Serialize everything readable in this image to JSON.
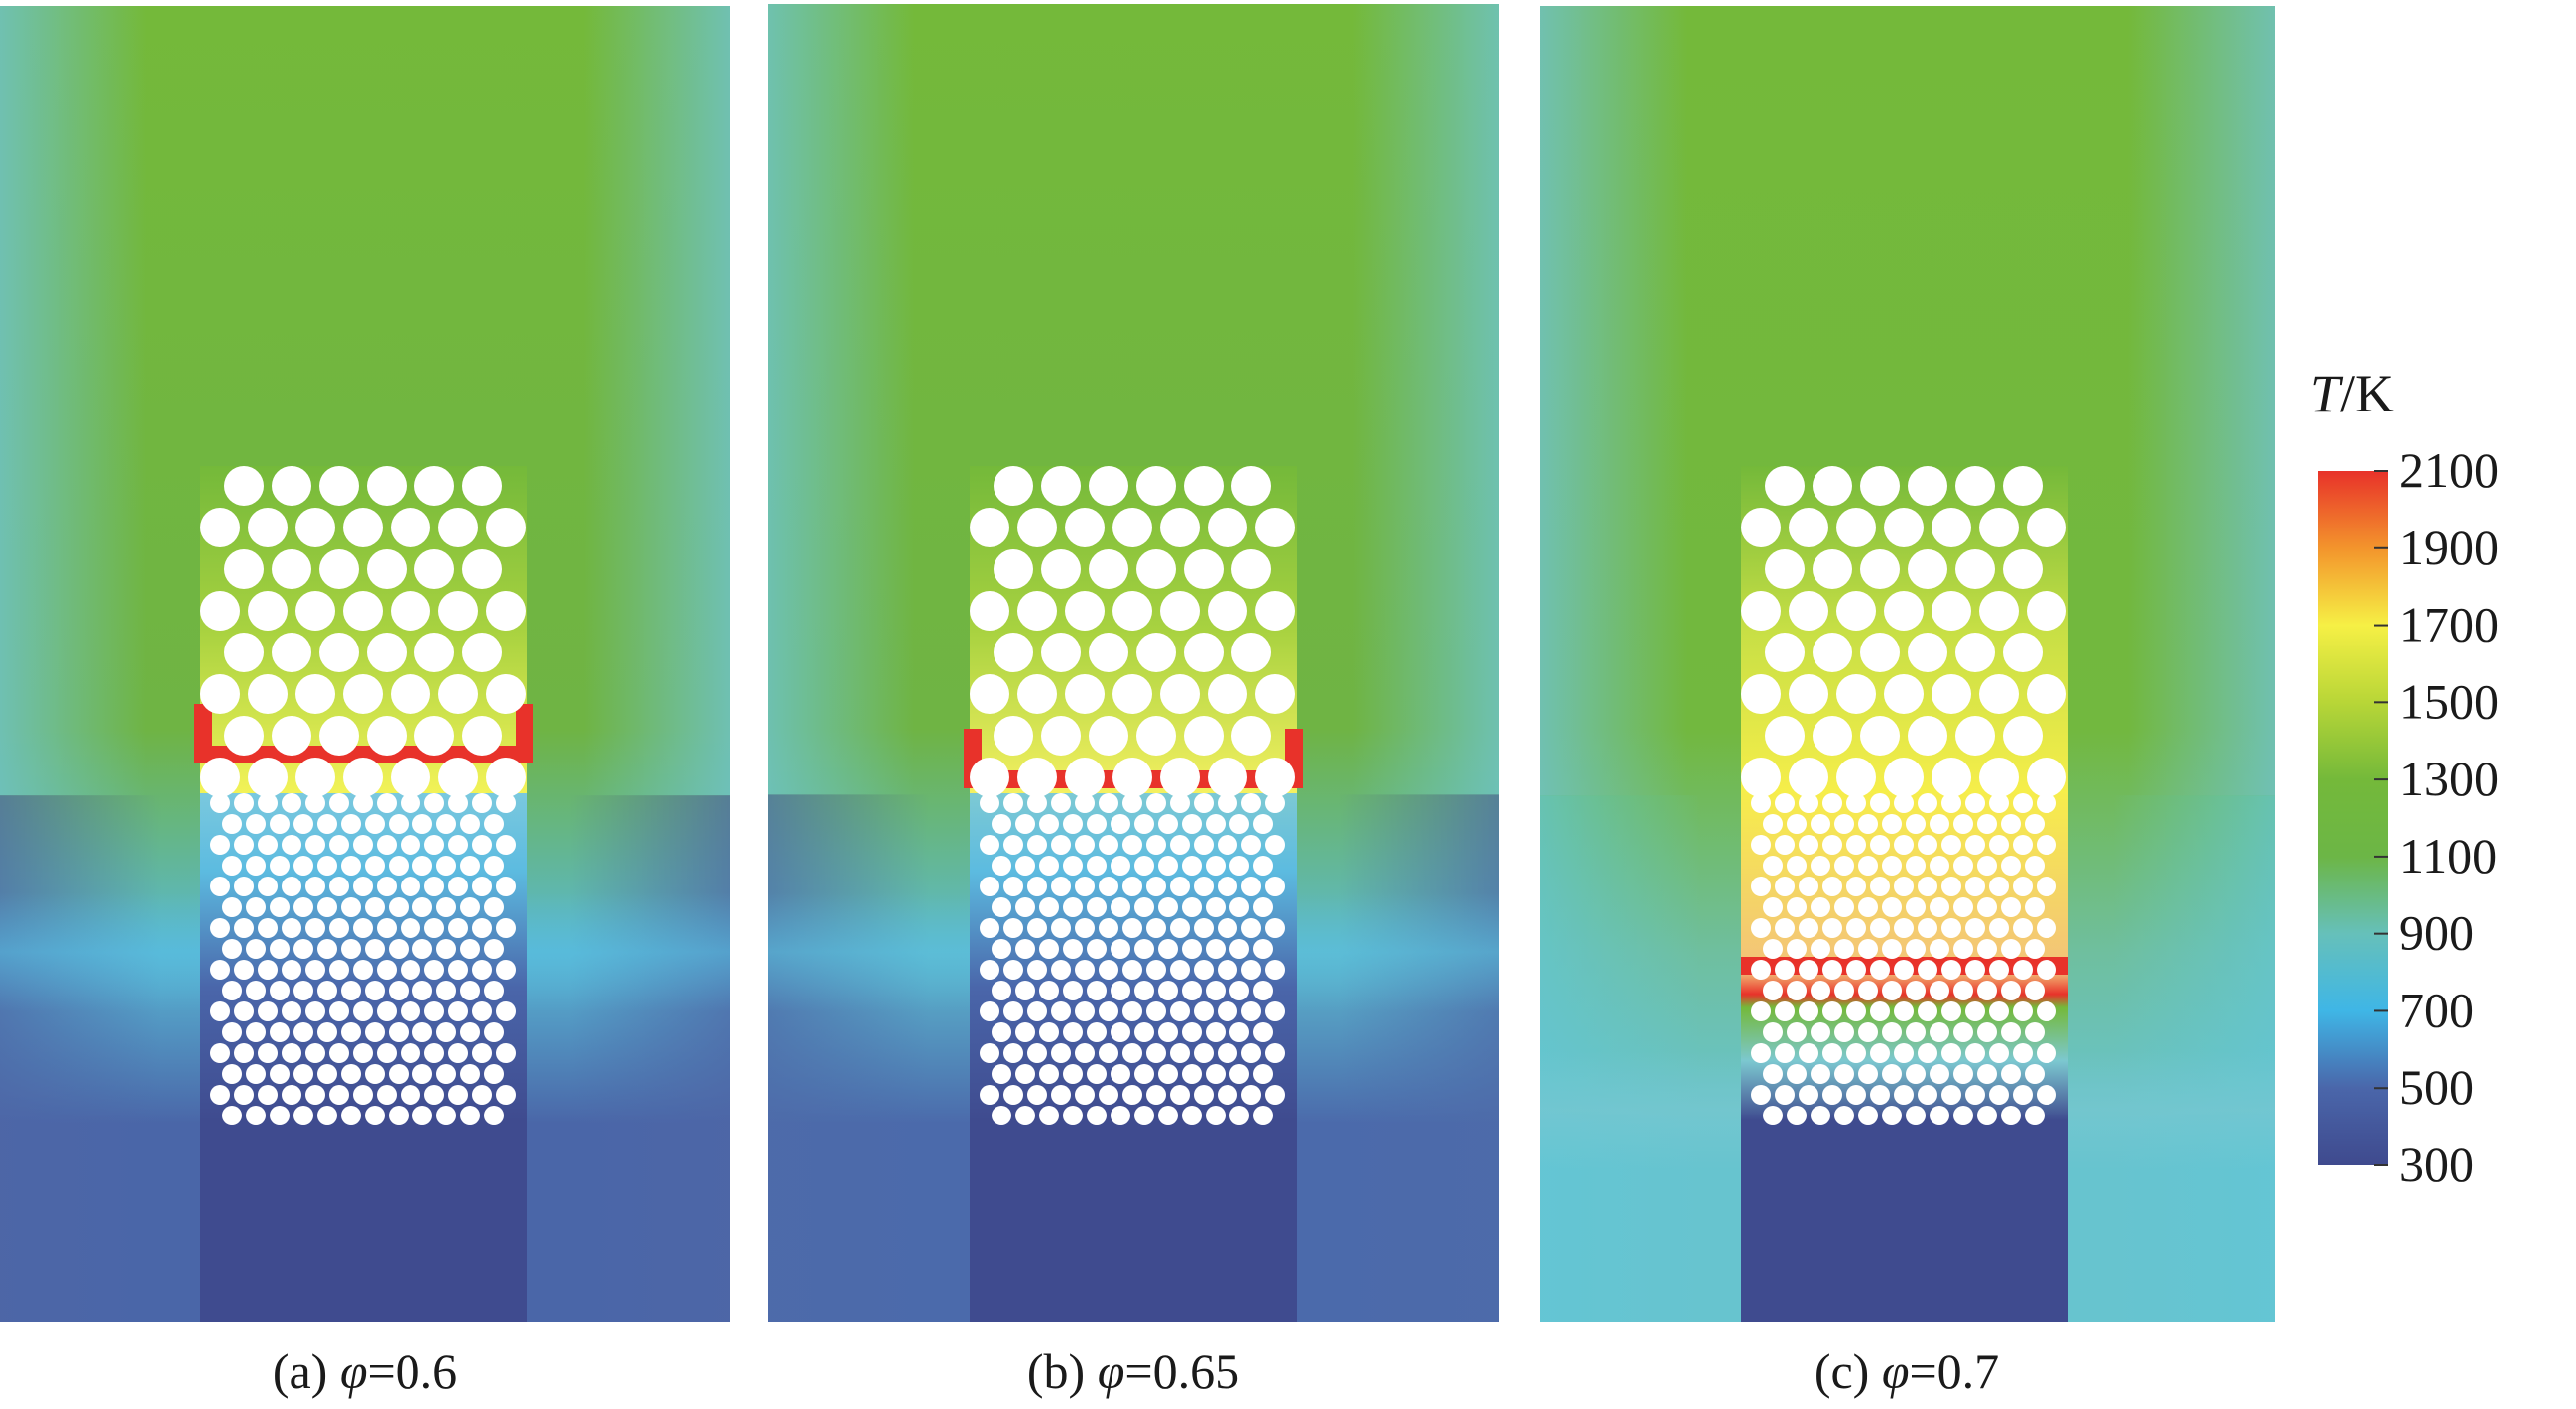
{
  "panels": [
    {
      "id": "a",
      "caption_prefix": "(a) ",
      "caption_symbol": "φ",
      "caption_value": "=0.6",
      "palette": {
        "top": "#74b93a",
        "mid": "#6fb444",
        "lower_mid": "#59b8d4",
        "bottom": "#4a66a8",
        "edge_top": "#6fc2c6",
        "edge_bottom": "#4e66a6",
        "channel": "#3f4b8f",
        "outer_band": "#58bde0"
      },
      "cool_band": "#7cc9de",
      "hot_band": "#e8322a",
      "warm_glow": "#f2f257"
    },
    {
      "id": "b",
      "caption_prefix": "(b) ",
      "caption_symbol": "φ",
      "caption_value": "=0.65",
      "palette": {
        "top": "#74b93a",
        "mid": "#6fb444",
        "lower_mid": "#5cb9cf",
        "bottom": "#4b6aab",
        "edge_top": "#6ec3c3",
        "edge_bottom": "#4e6ba9",
        "channel": "#3f4b8f",
        "outer_band": "#5bc0dd"
      },
      "cool_band": "#7fcad3",
      "hot_band": "#e8322a",
      "warm_glow": "#f4f060"
    },
    {
      "id": "c",
      "caption_prefix": "(c) ",
      "caption_symbol": "φ",
      "caption_value": "=0.7",
      "palette": {
        "top": "#74b93a",
        "mid": "#72b83f",
        "lower_mid": "#6fbf9f",
        "bottom": "#67c4cf",
        "edge_top": "#70c2c4",
        "edge_bottom": "#62c6d6",
        "channel": "#3f4b8f",
        "outer_band": "#7cc8d0"
      },
      "cool_band": "#6fc4c9",
      "hot_band": "#e8322a",
      "warm_glow": "#f6ee4a"
    }
  ],
  "colorbar": {
    "title_var": "T",
    "title_unit": "/K",
    "ticks": [
      "2100",
      "1900",
      "1700",
      "1500",
      "1300",
      "1100",
      "900",
      "700",
      "500",
      "300"
    ],
    "tick_values": [
      2100,
      1900,
      1700,
      1500,
      1300,
      1100,
      900,
      700,
      500,
      300
    ],
    "min": 300,
    "max": 2100,
    "color_stops": [
      {
        "value": 300,
        "color": "#3f4a8e"
      },
      {
        "value": 500,
        "color": "#4a66aa"
      },
      {
        "value": 700,
        "color": "#3fb6e6"
      },
      {
        "value": 900,
        "color": "#66c0ba"
      },
      {
        "value": 1100,
        "color": "#6cb646"
      },
      {
        "value": 1300,
        "color": "#74b93a"
      },
      {
        "value": 1500,
        "color": "#b8d637"
      },
      {
        "value": 1700,
        "color": "#f6f045"
      },
      {
        "value": 1900,
        "color": "#f3942c"
      },
      {
        "value": 2100,
        "color": "#e8322a"
      }
    ]
  }
}
